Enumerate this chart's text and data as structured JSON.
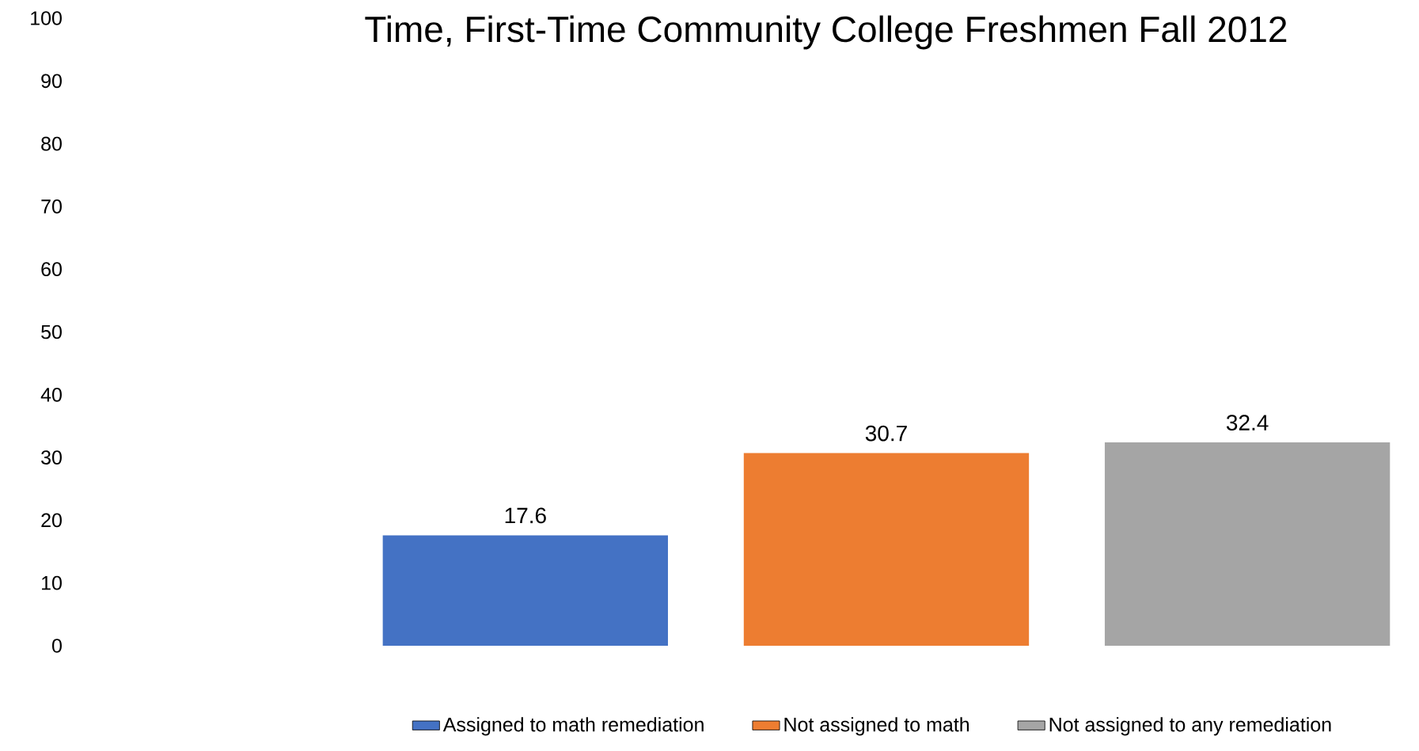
{
  "chart_data": {
    "type": "bar",
    "title": "Time, First-Time Community College Freshmen Fall 2012",
    "categories": [
      null
    ],
    "series": [
      {
        "name": "Assigned to math remediation",
        "color": "#4472c4",
        "values": [
          17.6
        ]
      },
      {
        "name": "Not assigned to math",
        "color": "#ed7d31",
        "values": [
          30.7
        ]
      },
      {
        "name": "Not assigned to any remediation",
        "color": "#a5a5a5",
        "values": [
          32.4
        ]
      }
    ],
    "ylim": [
      0,
      100
    ],
    "yticks": [
      0,
      10,
      20,
      30,
      40,
      50,
      60,
      70,
      80,
      90,
      100
    ],
    "data_labels": true,
    "grid": false,
    "legend": "bottom"
  }
}
